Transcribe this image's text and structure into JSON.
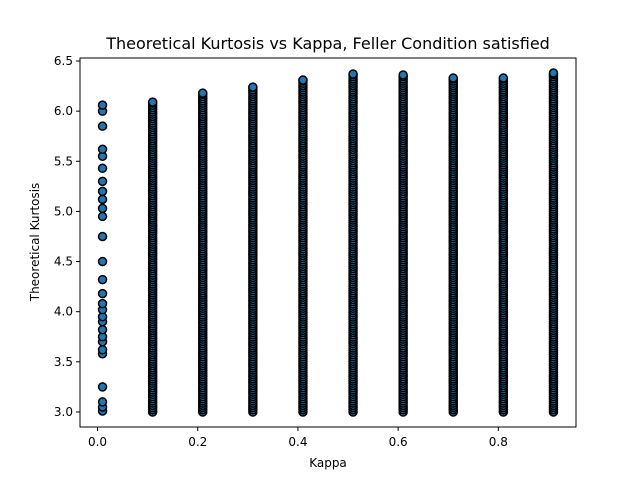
{
  "chart_data": {
    "type": "scatter",
    "title": "Theoretical Kurtosis vs Kappa, Feller Condition satisfied",
    "xlabel": "Kappa",
    "ylabel": "Theoretical Kurtosis",
    "xlim": [
      -0.035,
      0.955
    ],
    "ylim": [
      2.85,
      6.53
    ],
    "xticks": [
      "0.0",
      "0.2",
      "0.4",
      "0.6",
      "0.8"
    ],
    "yticks": [
      "3.0",
      "3.5",
      "4.0",
      "4.5",
      "5.0",
      "5.5",
      "6.0",
      "6.5"
    ],
    "grid": false,
    "marker_color": "#1f77b4",
    "marker_edge_color": "#000000",
    "kappa_values": [
      0.01,
      0.11,
      0.21,
      0.31,
      0.41,
      0.51,
      0.61,
      0.71,
      0.81,
      0.91
    ],
    "kurtosis_min": [
      3.0,
      3.0,
      3.0,
      3.0,
      3.0,
      3.0,
      3.0,
      3.0,
      3.0,
      3.0
    ],
    "kurtosis_max": [
      6.06,
      6.09,
      6.18,
      6.24,
      6.31,
      6.37,
      6.36,
      6.33,
      6.33,
      6.38
    ],
    "sample_points_k0_01": [
      3.01,
      3.05,
      3.1,
      3.25,
      3.58,
      3.62,
      3.7,
      3.75,
      3.82,
      3.9,
      3.95,
      4.02,
      4.08,
      4.18,
      4.32,
      4.5,
      4.75,
      4.95,
      5.03,
      5.12,
      5.2,
      5.3,
      5.43,
      5.55,
      5.62,
      5.85,
      6.0,
      6.06
    ]
  }
}
